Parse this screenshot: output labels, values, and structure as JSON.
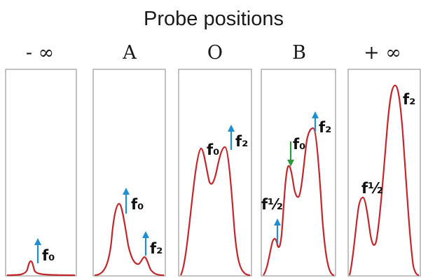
{
  "title": "Probe positions",
  "positions": [
    {
      "label": "- ∞",
      "peaks": [
        "f₀"
      ]
    },
    {
      "label": "A",
      "peaks": [
        "f₀",
        "f₂"
      ]
    },
    {
      "label": "O",
      "peaks": [
        "f₀",
        "f₂"
      ]
    },
    {
      "label": "B",
      "peaks": [
        "f½",
        "f₀",
        "f₂"
      ]
    },
    {
      "label": "+ ∞",
      "peaks": [
        "f½",
        "f₂"
      ]
    }
  ],
  "colors": {
    "curve": "#c0282d",
    "arrow_up": "#1f8fcf",
    "arrow_down": "#2e9a3a",
    "panel_border": "#9a9a9a"
  }
}
